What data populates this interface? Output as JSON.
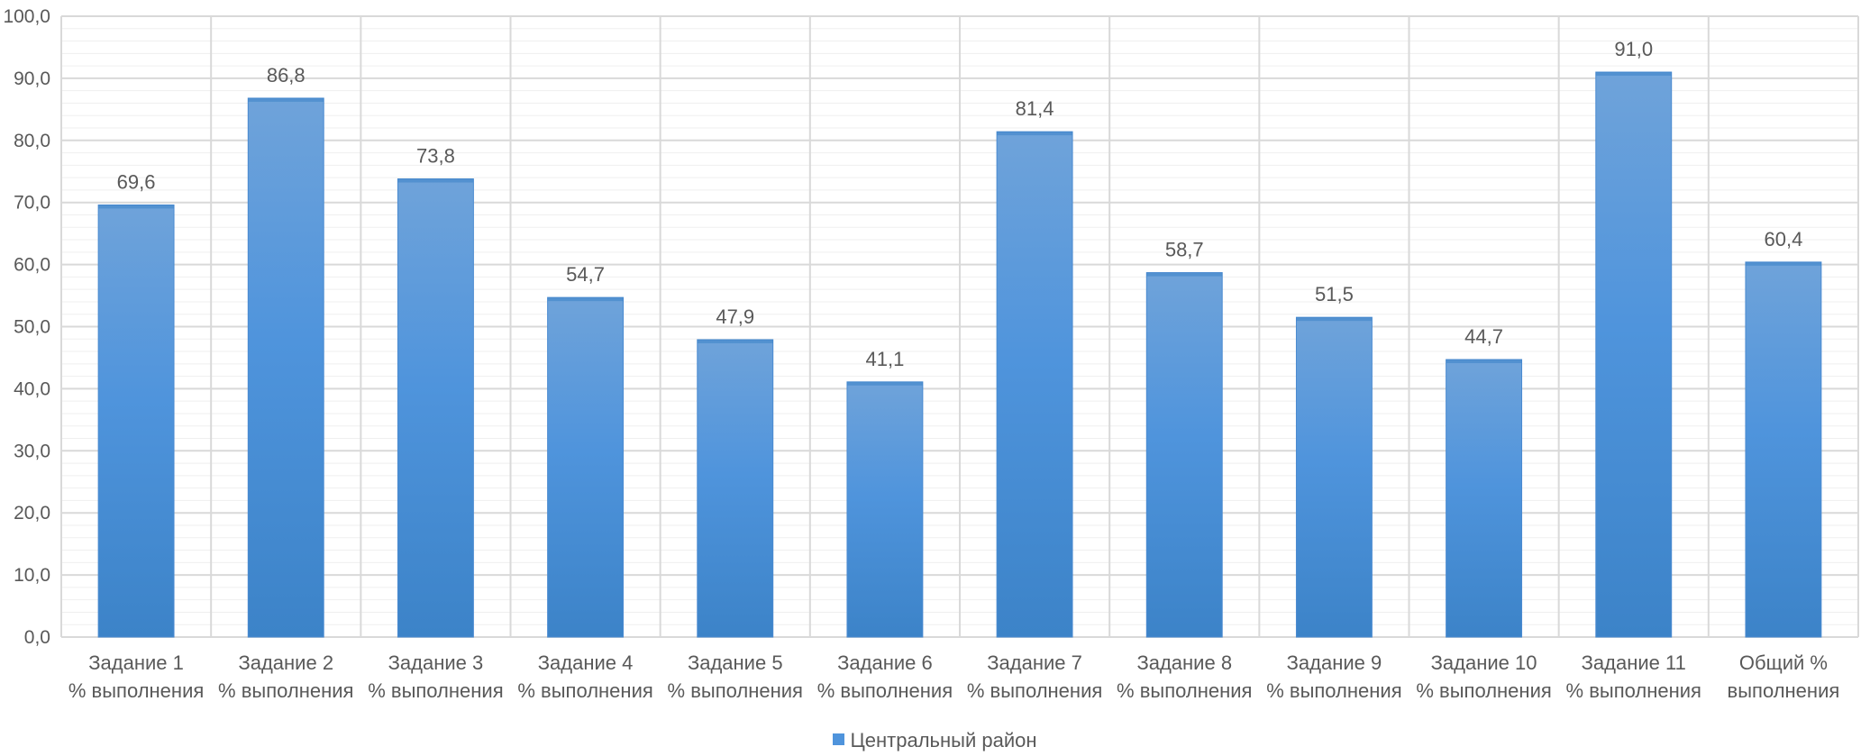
{
  "chart_data": {
    "type": "bar",
    "categories": [
      [
        "Задание 1",
        "% выполнения"
      ],
      [
        "Задание 2",
        "% выполнения"
      ],
      [
        "Задание 3",
        "% выполнения"
      ],
      [
        "Задание 4",
        "% выполнения"
      ],
      [
        "Задание 5",
        "% выполнения"
      ],
      [
        "Задание 6",
        "% выполнения"
      ],
      [
        "Задание 7",
        "% выполнения"
      ],
      [
        "Задание 8",
        "% выполнения"
      ],
      [
        "Задание 9",
        "% выполнения"
      ],
      [
        "Задание 10",
        "% выполнения"
      ],
      [
        "Задание 11",
        "% выполнения"
      ],
      [
        "Общий %",
        "выполнения"
      ]
    ],
    "series": [
      {
        "name": "Центральный район",
        "values": [
          69.6,
          86.8,
          73.8,
          54.7,
          47.9,
          41.1,
          81.4,
          58.7,
          51.5,
          44.7,
          91.0,
          60.4
        ],
        "data_labels": [
          "69,6",
          "86,8",
          "73,8",
          "54,7",
          "47,9",
          "41,1",
          "81,4",
          "58,7",
          "51,5",
          "44,7",
          "91,0",
          "60,4"
        ]
      }
    ],
    "y_ticks": [
      "0,0",
      "10,0",
      "20,0",
      "30,0",
      "40,0",
      "50,0",
      "60,0",
      "70,0",
      "80,0",
      "90,0",
      "100,0"
    ],
    "ylim": [
      0,
      100
    ],
    "major_step": 10,
    "minor_step": 2,
    "grid": true,
    "legend_position": "bottom",
    "colors": {
      "bar_top": "#6fa3da",
      "bar_mid": "#4f94dc",
      "bar_bottom": "#3c83c8",
      "bar_edge": "#4a8ad0",
      "major_grid": "#d9d9d9",
      "minor_grid": "#efefef",
      "axis_text": "#595959"
    }
  }
}
